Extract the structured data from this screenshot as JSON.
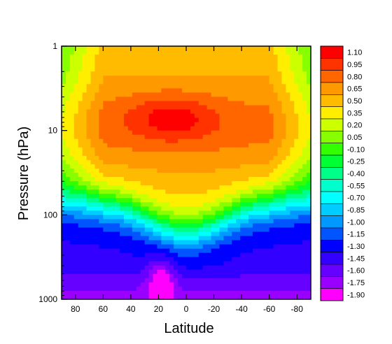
{
  "chart_data": {
    "type": "heatmap",
    "title": "",
    "xlabel": "Latitude",
    "ylabel": "Pressure (hPa)",
    "x_direction": "north-to-south (80 on left, -80 on right)",
    "xlim": [
      90,
      -90
    ],
    "ylim": [
      1000,
      1
    ],
    "y_scale": "log",
    "x_ticks": [
      80,
      60,
      40,
      20,
      0,
      -20,
      -40,
      -60,
      -80
    ],
    "x_tick_labels": [
      "80",
      "60",
      "40",
      "20",
      "0",
      "-20",
      "-40",
      "-60",
      "-80"
    ],
    "y_ticks": [
      1,
      10,
      100,
      1000
    ],
    "y_tick_labels": [
      "1",
      "10",
      "100",
      "1000"
    ],
    "colorbar": {
      "labels": [
        "1.10",
        "0.95",
        "0.80",
        "0.65",
        "0.50",
        "0.35",
        "0.20",
        "0.05",
        "-0.10",
        "-0.25",
        "-0.40",
        "-0.55",
        "-0.70",
        "-0.85",
        "-1.00",
        "-1.15",
        "-1.30",
        "-1.45",
        "-1.60",
        "-1.75",
        "-1.90"
      ],
      "colors": [
        "#ff0000",
        "#ff3300",
        "#ff6600",
        "#ff9900",
        "#ffbb00",
        "#ffee00",
        "#ccff00",
        "#88ff00",
        "#33ff00",
        "#00ff33",
        "#00ff88",
        "#00ffcc",
        "#00ffff",
        "#00ccff",
        "#0099ff",
        "#0055ff",
        "#0000ff",
        "#3300ff",
        "#6600ff",
        "#9900ff",
        "#ff00ff"
      ]
    },
    "field_description_values": {
      "max_center": {
        "lat": 10,
        "pressure": 7,
        "value": 1.1
      },
      "min_region": {
        "lat": 20,
        "pressure": 700,
        "value": -1.9
      }
    },
    "grid": false,
    "legend": "colorbar-right"
  }
}
